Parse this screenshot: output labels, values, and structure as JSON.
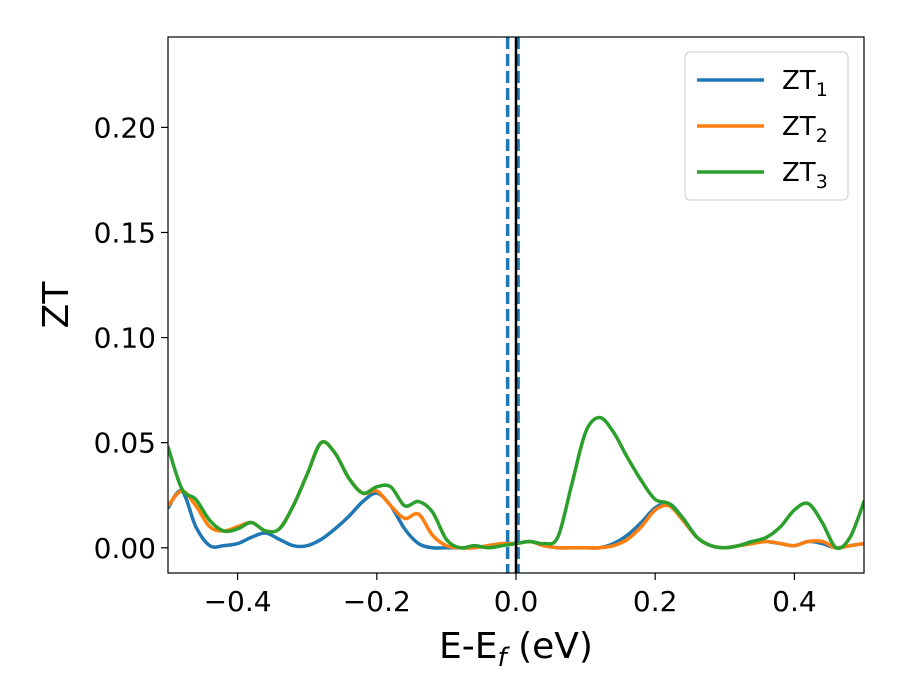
{
  "chart_data": {
    "type": "line",
    "xlabel": "E-E",
    "xlabel_sub": "f",
    "xlabel_unit": " (eV)",
    "ylabel": "ZT",
    "xlim": [
      -0.5,
      0.5
    ],
    "ylim": [
      -0.012,
      0.243
    ],
    "x_ticks": [
      -0.4,
      -0.2,
      0.0,
      0.2,
      0.4
    ],
    "x_tick_labels": [
      "−0.4",
      "−0.2",
      "0.0",
      "0.2",
      "0.4"
    ],
    "y_ticks": [
      0.0,
      0.05,
      0.1,
      0.15,
      0.2
    ],
    "y_tick_labels": [
      "0.00",
      "0.05",
      "0.10",
      "0.15",
      "0.20"
    ],
    "grid": false,
    "legend_position": "top-right",
    "vertical_lines": [
      {
        "x": -0.012,
        "style": "dashed",
        "color": "#1f77b4"
      },
      {
        "x": 0.003,
        "style": "dashed",
        "color": "#1f77b4"
      },
      {
        "x": 0.0,
        "style": "solid",
        "color": "#000000"
      }
    ],
    "series": [
      {
        "name": "ZT",
        "name_sub": "1",
        "color": "#1f77b4",
        "x": [
          -0.5,
          -0.48,
          -0.46,
          -0.44,
          -0.42,
          -0.4,
          -0.38,
          -0.36,
          -0.34,
          -0.32,
          -0.3,
          -0.28,
          -0.26,
          -0.24,
          -0.22,
          -0.2,
          -0.18,
          -0.16,
          -0.14,
          -0.12,
          -0.1,
          -0.08,
          -0.06,
          -0.04,
          -0.02,
          0.0,
          0.02,
          0.04,
          0.06,
          0.08,
          0.1,
          0.12,
          0.14,
          0.16,
          0.18,
          0.2,
          0.22,
          0.24,
          0.26,
          0.28,
          0.3,
          0.32,
          0.34,
          0.36,
          0.38,
          0.4,
          0.42,
          0.44,
          0.46,
          0.48,
          0.5
        ],
        "values": [
          0.019,
          0.027,
          0.01,
          0.001,
          0.001,
          0.002,
          0.005,
          0.007,
          0.004,
          0.001,
          0.001,
          0.004,
          0.009,
          0.015,
          0.022,
          0.026,
          0.02,
          0.009,
          0.002,
          0.0,
          0.0,
          0.0,
          0.0,
          0.001,
          0.002,
          0.002,
          0.003,
          0.001,
          0.0,
          0.0,
          0.0,
          0.0,
          0.002,
          0.006,
          0.012,
          0.019,
          0.021,
          0.014,
          0.005,
          0.001,
          0.0,
          0.001,
          0.003,
          0.003,
          0.002,
          0.001,
          0.003,
          0.002,
          0.0,
          0.001,
          0.002
        ]
      },
      {
        "name": "ZT",
        "name_sub": "2",
        "color": "#ff7f0e",
        "x": [
          -0.5,
          -0.48,
          -0.46,
          -0.44,
          -0.42,
          -0.4,
          -0.38,
          -0.36,
          -0.34,
          -0.32,
          -0.3,
          -0.28,
          -0.26,
          -0.24,
          -0.22,
          -0.2,
          -0.18,
          -0.16,
          -0.14,
          -0.12,
          -0.1,
          -0.08,
          -0.06,
          -0.04,
          -0.02,
          0.0,
          0.02,
          0.04,
          0.06,
          0.08,
          0.1,
          0.12,
          0.14,
          0.16,
          0.18,
          0.2,
          0.22,
          0.24,
          0.26,
          0.28,
          0.3,
          0.32,
          0.34,
          0.36,
          0.38,
          0.4,
          0.42,
          0.44,
          0.46,
          0.48,
          0.5
        ],
        "values": [
          0.02,
          0.027,
          0.02,
          0.01,
          0.008,
          0.01,
          0.012,
          0.008,
          0.009,
          0.02,
          0.035,
          0.05,
          0.045,
          0.033,
          0.026,
          0.027,
          0.02,
          0.014,
          0.016,
          0.006,
          0.001,
          0.0,
          0.0,
          0.001,
          0.002,
          0.002,
          0.003,
          0.001,
          0.0,
          0.0,
          0.0,
          0.0,
          0.001,
          0.004,
          0.01,
          0.018,
          0.02,
          0.013,
          0.005,
          0.001,
          0.0,
          0.001,
          0.002,
          0.003,
          0.002,
          0.001,
          0.003,
          0.003,
          0.0,
          0.001,
          0.002
        ]
      },
      {
        "name": "ZT",
        "name_sub": "3",
        "color": "#2ca02c",
        "x": [
          -0.5,
          -0.48,
          -0.46,
          -0.44,
          -0.42,
          -0.4,
          -0.38,
          -0.36,
          -0.34,
          -0.32,
          -0.3,
          -0.28,
          -0.26,
          -0.24,
          -0.22,
          -0.2,
          -0.18,
          -0.16,
          -0.14,
          -0.12,
          -0.1,
          -0.08,
          -0.06,
          -0.04,
          -0.02,
          0.0,
          0.02,
          0.04,
          0.06,
          0.08,
          0.1,
          0.12,
          0.14,
          0.16,
          0.18,
          0.2,
          0.22,
          0.24,
          0.26,
          0.28,
          0.3,
          0.32,
          0.34,
          0.36,
          0.38,
          0.4,
          0.42,
          0.44,
          0.46,
          0.48,
          0.5
        ],
        "values": [
          0.048,
          0.028,
          0.023,
          0.013,
          0.008,
          0.009,
          0.012,
          0.008,
          0.009,
          0.02,
          0.035,
          0.05,
          0.045,
          0.033,
          0.026,
          0.029,
          0.029,
          0.02,
          0.022,
          0.017,
          0.004,
          0.0,
          0.001,
          0.0,
          0.001,
          0.002,
          0.003,
          0.002,
          0.005,
          0.03,
          0.055,
          0.062,
          0.055,
          0.043,
          0.032,
          0.023,
          0.021,
          0.014,
          0.005,
          0.001,
          0.0,
          0.001,
          0.003,
          0.005,
          0.01,
          0.018,
          0.021,
          0.012,
          0.0,
          0.005,
          0.022
        ]
      }
    ]
  }
}
